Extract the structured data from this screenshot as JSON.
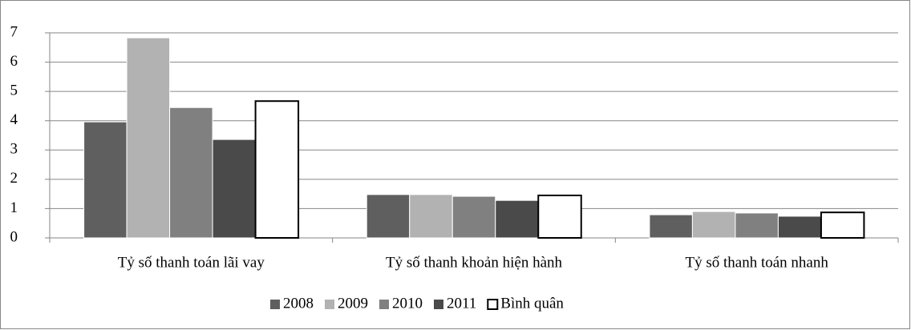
{
  "chart_data": {
    "type": "bar",
    "categories": [
      "Tỷ số thanh toán lãi vay",
      "Tỷ số thanh khoản hiện hành",
      "Tỷ số thanh toán nhanh"
    ],
    "series": [
      {
        "name": "2008",
        "color": "#5f5f5f",
        "values": [
          3.96,
          1.48,
          0.79
        ]
      },
      {
        "name": "2009",
        "color": "#b2b2b2",
        "values": [
          6.83,
          1.48,
          0.9
        ]
      },
      {
        "name": "2010",
        "color": "#808080",
        "values": [
          4.45,
          1.42,
          0.85
        ]
      },
      {
        "name": "2011",
        "color": "#4a4a4a",
        "values": [
          3.36,
          1.28,
          0.74
        ]
      },
      {
        "name": "Bình quân",
        "color": "#ffffff",
        "edgecolor": "#000000",
        "values": [
          4.67,
          1.45,
          0.87
        ]
      }
    ],
    "ylim": [
      0,
      7
    ],
    "yticks": [
      0,
      1,
      2,
      3,
      4,
      5,
      6,
      7
    ],
    "grid": true,
    "legend": "bottom"
  }
}
